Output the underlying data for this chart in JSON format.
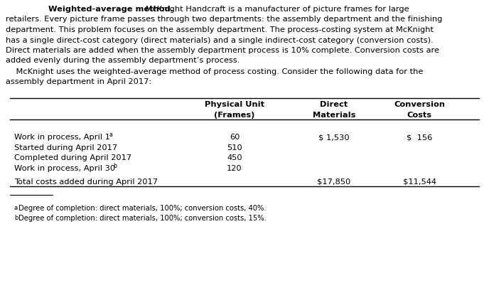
{
  "bg_color": "#ffffff",
  "text_color": "#000000",
  "font_size": 8.2,
  "bold_phrase": "Weighted-average method.",
  "para1_rest": " McKnight Handcraft is a manufacturer of picture frames for large",
  "para1_lines": [
    "retailers. Every picture frame passes through two departments: the assembly department and the finishing",
    "department. This problem focuses on the assembly department. The process-costing system at McKnight",
    "has a single direct-cost category (direct materials) and a single indirect-cost category (conversion costs).",
    "Direct materials are added when the assembly department process is 10% complete. Conversion costs are",
    "added evenly during the assembly department’s process."
  ],
  "para2_line1": "    McKnight uses the weighted-average method of process costing. Consider the following data for the",
  "para2_line2": "assembly department in April 2017:",
  "col1_header1": "Physical Unit",
  "col1_header2": "(Frames)",
  "col2_header1": "Direct",
  "col2_header2": "Materials",
  "col3_header1": "Conversion",
  "col3_header2": "Costs",
  "row_data": [
    {
      "label": "Work in process, April 1",
      "sup": "a",
      "units": "60",
      "dm": "$ 1,530",
      "cc": "$  156"
    },
    {
      "label": "Started during April 2017",
      "sup": "",
      "units": "510",
      "dm": "",
      "cc": ""
    },
    {
      "label": "Completed during April 2017",
      "sup": "",
      "units": "450",
      "dm": "",
      "cc": ""
    },
    {
      "label": "Work in process, April 30",
      "sup": "b",
      "units": "120",
      "dm": "",
      "cc": ""
    },
    {
      "label": "Total costs added during April 2017",
      "sup": "",
      "units": "",
      "dm": "$17,850",
      "cc": "$11,544"
    }
  ],
  "footnote_a": "aDegree of completion: direct materials, 100%; conversion costs, 40%.",
  "footnote_b": "bDegree of completion: direct materials, 100%; conversion costs, 15%.",
  "footnote_a_super": "a",
  "footnote_b_super": "b"
}
